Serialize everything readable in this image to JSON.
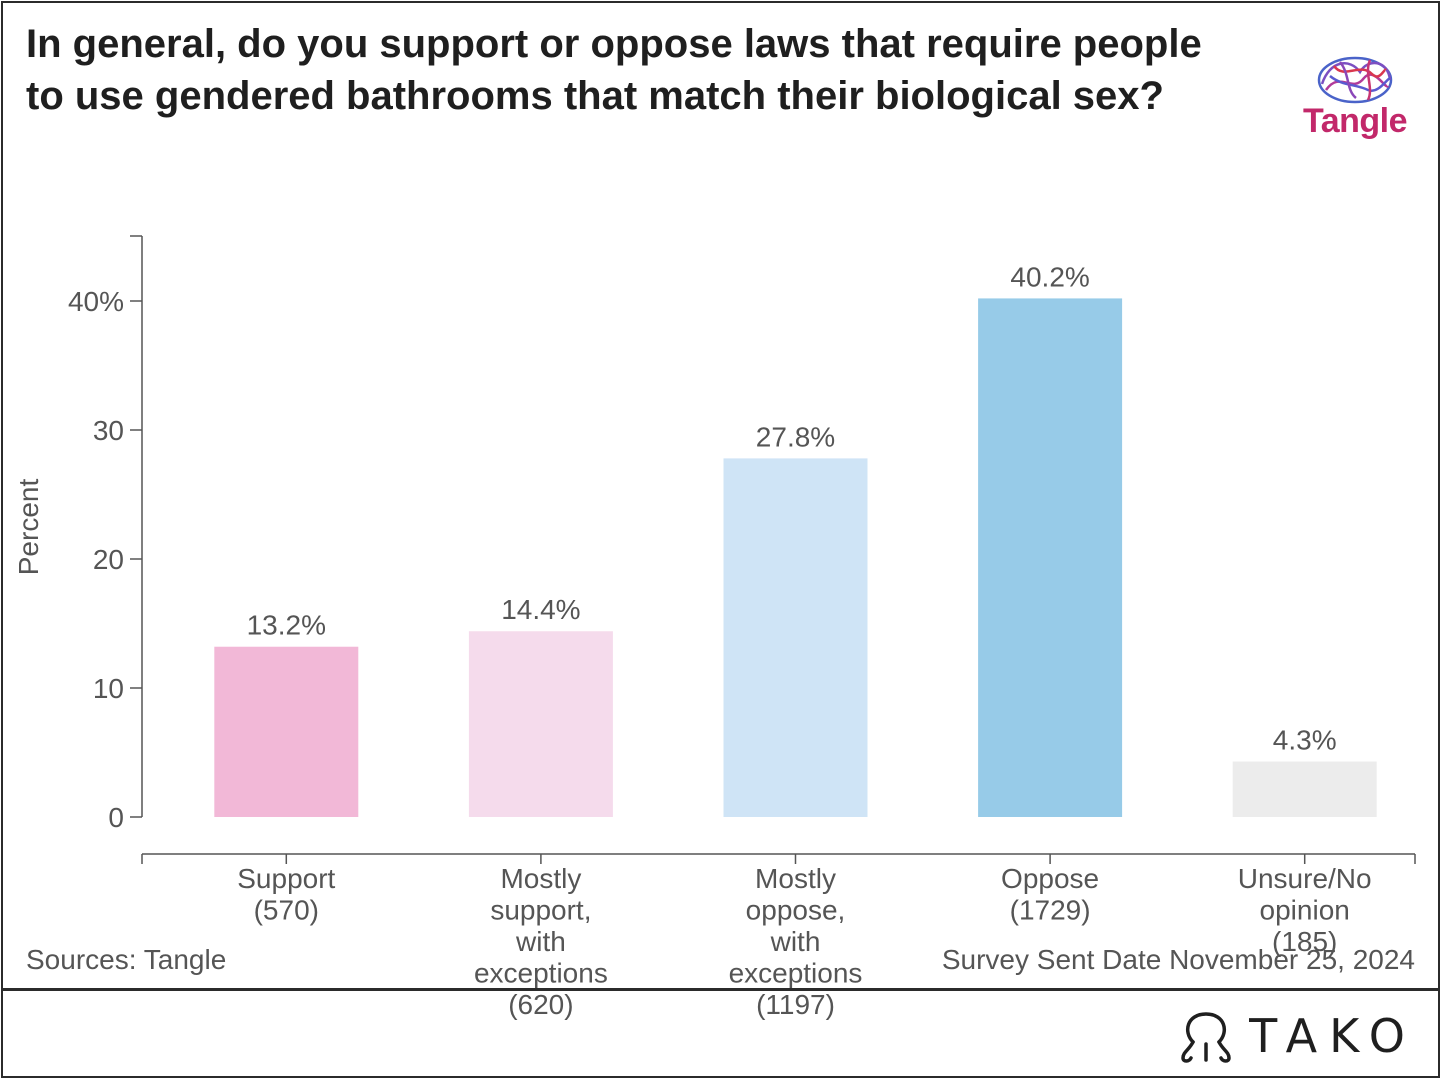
{
  "title": "In general, do you support or oppose laws that require people to use gendered bathrooms that match their biological sex?",
  "logo": {
    "word": "Tangle",
    "icon": "brain-icon"
  },
  "footer": {
    "sources": "Sources: Tangle",
    "survey_date": "Survey Sent Date November 25, 2024",
    "brand": "TAKO",
    "brand_icon": "tako-octopus-icon"
  },
  "chart_data": {
    "type": "bar",
    "title": "In general, do you support or oppose laws that require people to use gendered bathrooms that match their biological sex?",
    "xlabel": "",
    "ylabel": "Percent",
    "ylim": [
      0,
      45
    ],
    "yticks": [
      0,
      10,
      20,
      30,
      40
    ],
    "ytick_labels": [
      "0",
      "10",
      "20",
      "30",
      "40%"
    ],
    "grid": false,
    "categories": [
      [
        "Support",
        "(570)"
      ],
      [
        "Mostly",
        "support,",
        "with",
        "exceptions",
        "(620)"
      ],
      [
        "Mostly",
        "oppose,",
        "with",
        "exceptions",
        "(1197)"
      ],
      [
        "Oppose",
        "(1729)"
      ],
      [
        "Unsure/No",
        "opinion",
        "(185)"
      ]
    ],
    "values": [
      13.2,
      14.4,
      27.8,
      40.2,
      4.3
    ],
    "value_labels": [
      "13.2%",
      "14.4%",
      "27.8%",
      "40.2%",
      "4.3%"
    ],
    "colors": [
      "#f2b8d7",
      "#f5dbec",
      "#cfe4f6",
      "#97cbe8",
      "#ececec"
    ]
  }
}
